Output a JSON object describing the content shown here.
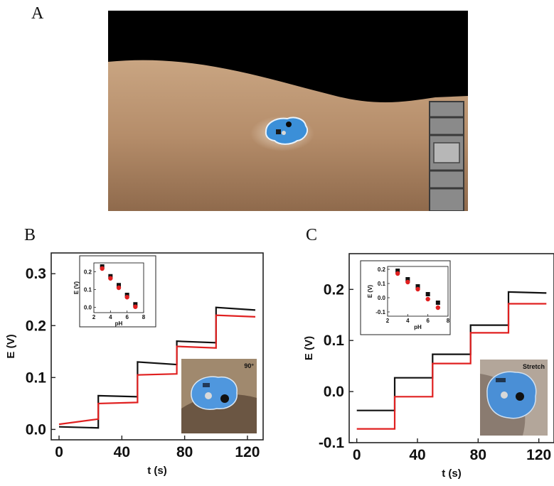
{
  "panels": {
    "a_label": "A",
    "b_label": "B",
    "c_label": "C"
  },
  "colors": {
    "black_series": "#111111",
    "red_series": "#e02020",
    "skin": "#c7a27e",
    "patch": "#3b8fd8",
    "background": "#000000"
  },
  "chart_data": [
    {
      "type": "line",
      "panel": "B",
      "xlabel": "t (s)",
      "ylabel": "E (V)",
      "xlim": [
        -5,
        130
      ],
      "ylim": [
        -0.02,
        0.34
      ],
      "xticks": [
        0,
        40,
        80,
        120
      ],
      "yticks": [
        0.0,
        0.1,
        0.2,
        0.3
      ],
      "xtick_labels": [
        "0",
        "40",
        "80",
        "120"
      ],
      "ytick_labels": [
        "0.0",
        "0.1",
        "0.2",
        "0.3"
      ],
      "photo_label": "90°",
      "series": [
        {
          "color": "black",
          "step": true,
          "x": [
            0,
            25,
            25,
            50,
            50,
            75,
            75,
            100,
            100,
            125
          ],
          "y": [
            0.005,
            0.003,
            0.065,
            0.063,
            0.13,
            0.125,
            0.17,
            0.167,
            0.235,
            0.23
          ]
        },
        {
          "color": "red",
          "step": true,
          "x": [
            0,
            25,
            25,
            50,
            50,
            75,
            75,
            100,
            100,
            125
          ],
          "y": [
            0.01,
            0.02,
            0.05,
            0.052,
            0.105,
            0.107,
            0.16,
            0.157,
            0.22,
            0.217
          ]
        }
      ],
      "inset": {
        "xlabel": "pH",
        "ylabel": "E (V)",
        "xlim": [
          2,
          8
        ],
        "ylim": [
          -0.03,
          0.25
        ],
        "xticks": [
          2,
          4,
          6,
          8
        ],
        "yticks": [
          0.0,
          0.1,
          0.2
        ],
        "xtick_labels": [
          "2",
          "4",
          "6",
          "8"
        ],
        "ytick_labels": [
          "0.0",
          "0.1",
          "0.2"
        ],
        "series": [
          {
            "color": "black",
            "x": [
              3,
              4,
              5,
              6,
              7
            ],
            "y": [
              0.23,
              0.175,
              0.125,
              0.07,
              0.017
            ]
          },
          {
            "color": "red",
            "x": [
              3,
              4,
              5,
              6,
              7
            ],
            "y": [
              0.218,
              0.163,
              0.11,
              0.057,
              0.003
            ]
          }
        ]
      }
    },
    {
      "type": "line",
      "panel": "C",
      "xlabel": "t (s)",
      "ylabel": "E (V)",
      "xlim": [
        -5,
        130
      ],
      "ylim": [
        -0.1,
        0.27
      ],
      "xticks": [
        0,
        40,
        80,
        120
      ],
      "yticks": [
        -0.1,
        0.0,
        0.1,
        0.2
      ],
      "xtick_labels": [
        "0",
        "40",
        "80",
        "120"
      ],
      "ytick_labels": [
        "-0.1",
        "0.0",
        "0.1",
        "0.2"
      ],
      "photo_label": "Stretch",
      "series": [
        {
          "color": "black",
          "step": true,
          "x": [
            0,
            25,
            25,
            50,
            50,
            75,
            75,
            100,
            100,
            125
          ],
          "y": [
            -0.037,
            -0.037,
            0.027,
            0.027,
            0.073,
            0.073,
            0.13,
            0.13,
            0.195,
            0.193
          ]
        },
        {
          "color": "red",
          "step": true,
          "x": [
            0,
            25,
            25,
            50,
            50,
            75,
            75,
            100,
            100,
            125
          ],
          "y": [
            -0.073,
            -0.073,
            -0.01,
            -0.01,
            0.055,
            0.055,
            0.115,
            0.115,
            0.172,
            0.172
          ]
        }
      ],
      "inset": {
        "xlabel": "pH",
        "ylabel": "E (V)",
        "xlim": [
          2,
          8
        ],
        "ylim": [
          -0.13,
          0.22
        ],
        "xticks": [
          2,
          4,
          6,
          8
        ],
        "yticks": [
          -0.1,
          0.0,
          0.1,
          0.2
        ],
        "xtick_labels": [
          "2",
          "4",
          "6",
          "8"
        ],
        "ytick_labels": [
          "-0.1",
          "0.0",
          "0.1",
          "0.2"
        ],
        "series": [
          {
            "color": "black",
            "x": [
              3,
              4,
              5,
              6,
              7
            ],
            "y": [
              0.19,
              0.13,
              0.08,
              0.025,
              -0.035
            ]
          },
          {
            "color": "red",
            "x": [
              3,
              4,
              5,
              6,
              7
            ],
            "y": [
              0.17,
              0.11,
              0.06,
              -0.01,
              -0.07
            ]
          }
        ]
      }
    }
  ]
}
